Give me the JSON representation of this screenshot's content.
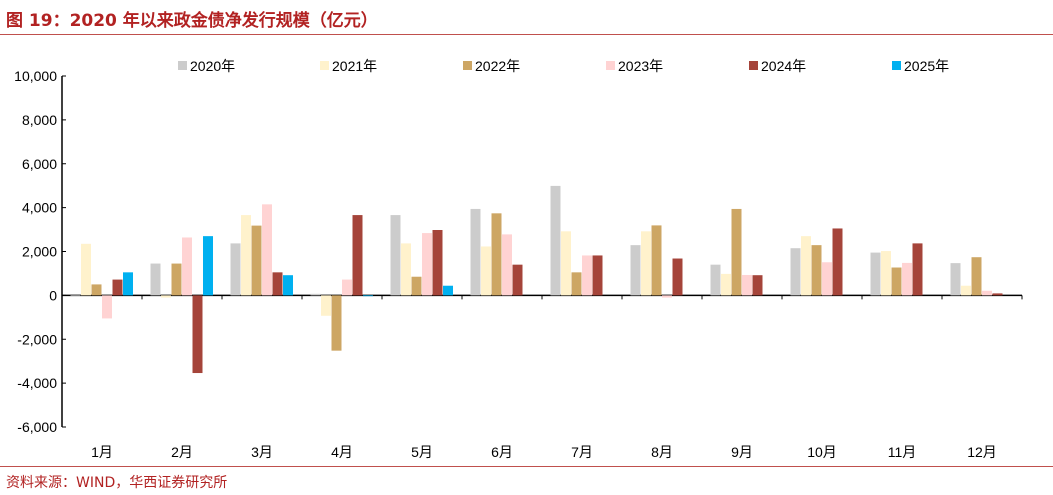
{
  "title": "图 19：2020 年以来政金债净发行规模（亿元）",
  "source": "资料来源：WIND，华西证券研究所",
  "chart_data": {
    "type": "bar",
    "title": "图 19：2020 年以来政金债净发行规模（亿元）",
    "xlabel": "",
    "ylabel": "",
    "ylim": [
      -6000,
      10000
    ],
    "yticks": [
      -6000,
      -4000,
      -2000,
      0,
      2000,
      4000,
      6000,
      8000,
      10000
    ],
    "ytick_labels": [
      "-6,000",
      "-4,000",
      "-2,000",
      "0",
      "2,000",
      "4,000",
      "6,000",
      "8,000",
      "10,000"
    ],
    "legend_position": "top",
    "grid": false,
    "categories": [
      "1月",
      "2月",
      "3月",
      "4月",
      "5月",
      "6月",
      "7月",
      "8月",
      "9月",
      "10月",
      "11月",
      "12月"
    ],
    "series": [
      {
        "name": "2020年",
        "color": "#CCCCCC",
        "values": [
          0,
          1450,
          2370,
          70,
          3660,
          3940,
          4990,
          2290,
          1400,
          2150,
          1950,
          1470
        ]
      },
      {
        "name": "2021年",
        "color": "#FFF2CC",
        "values": [
          2350,
          -100,
          3660,
          -930,
          2370,
          2230,
          2920,
          2920,
          980,
          2700,
          2020,
          440
        ]
      },
      {
        "name": "2022年",
        "color": "#CDA664",
        "values": [
          500,
          1450,
          3180,
          -2520,
          850,
          3740,
          1050,
          3190,
          3940,
          2290,
          1270,
          1740
        ]
      },
      {
        "name": "2023年",
        "color": "#FFD3D3",
        "values": [
          -1050,
          2640,
          4150,
          720,
          2840,
          2780,
          1820,
          -100,
          930,
          1510,
          1480,
          210
        ]
      },
      {
        "name": "2024年",
        "color": "#A5443A",
        "values": [
          720,
          -3540,
          1050,
          3660,
          2980,
          1400,
          1820,
          1680,
          920,
          3050,
          2370,
          90
        ]
      },
      {
        "name": "2025年",
        "color": "#00B0F0",
        "values": [
          1050,
          2700,
          920,
          0,
          440,
          null,
          null,
          null,
          null,
          null,
          null,
          null
        ]
      }
    ]
  }
}
